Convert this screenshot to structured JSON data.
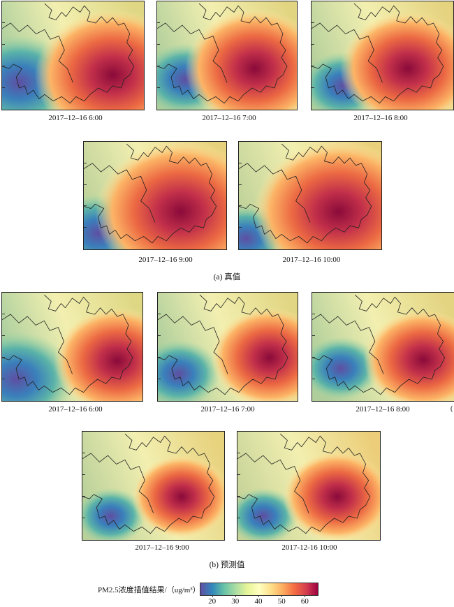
{
  "sections": [
    {
      "caption": "(a) 真值",
      "panels": [
        {
          "time": "2017–12–16  6:00",
          "hot": [
            0.78,
            0.68,
            0.55
          ],
          "cold": [
            0.12,
            0.75,
            0.42
          ],
          "tone": 0.45
        },
        {
          "time": "2017–12–16  7:00",
          "hot": [
            0.7,
            0.62,
            0.5
          ],
          "cold": [
            0.2,
            0.72,
            0.32
          ],
          "tone": 0.5
        },
        {
          "time": "2017–12–16  8:00",
          "hot": [
            0.68,
            0.62,
            0.48
          ],
          "cold": [
            0.22,
            0.78,
            0.3
          ],
          "tone": 0.55
        },
        {
          "time": "2017–12–16  9:00",
          "hot": [
            0.68,
            0.65,
            0.6
          ],
          "cold": [
            0.1,
            0.85,
            0.35
          ],
          "tone": 0.62
        },
        {
          "time": "2017–12–16  10:00",
          "hot": [
            0.7,
            0.65,
            0.6
          ],
          "cold": [
            0.05,
            0.9,
            0.3
          ],
          "tone": 0.65
        }
      ]
    },
    {
      "caption": "(b) 预测值",
      "panels": [
        {
          "time": "2017–12–16  6:00",
          "hot": [
            0.82,
            0.63,
            0.45
          ],
          "cold": [
            0.1,
            0.8,
            0.42
          ],
          "tone": 0.42
        },
        {
          "time": "2017–12–16  7:00",
          "hot": [
            0.8,
            0.6,
            0.42
          ],
          "cold": [
            0.15,
            0.75,
            0.3
          ],
          "tone": 0.48
        },
        {
          "time": "2017–12–16  8:00",
          "hot": [
            0.78,
            0.62,
            0.42
          ],
          "cold": [
            0.2,
            0.7,
            0.28
          ],
          "tone": 0.52
        },
        {
          "time": "2017–12–16  9:00",
          "hot": [
            0.7,
            0.6,
            0.35
          ],
          "cold": [
            0.2,
            0.78,
            0.25
          ],
          "tone": 0.6
        },
        {
          "time": "2017-12-16  10:00",
          "hot": [
            0.7,
            0.6,
            0.38
          ],
          "cold": [
            0.18,
            0.78,
            0.25
          ],
          "tone": 0.7
        }
      ]
    }
  ],
  "colorbar": {
    "label": "PM2.5浓度插值结果/（ug/m³）",
    "ticks": [
      "20",
      "30",
      "40",
      "50",
      "60"
    ],
    "range": [
      15,
      65
    ],
    "colors": [
      "#5e4fa2",
      "#3288bd",
      "#66c2a5",
      "#abdda4",
      "#e6f598",
      "#ffffbf",
      "#fee08b",
      "#fdae61",
      "#f46d43",
      "#d53e4f",
      "#9e0142"
    ]
  },
  "stray_mark": "("
}
